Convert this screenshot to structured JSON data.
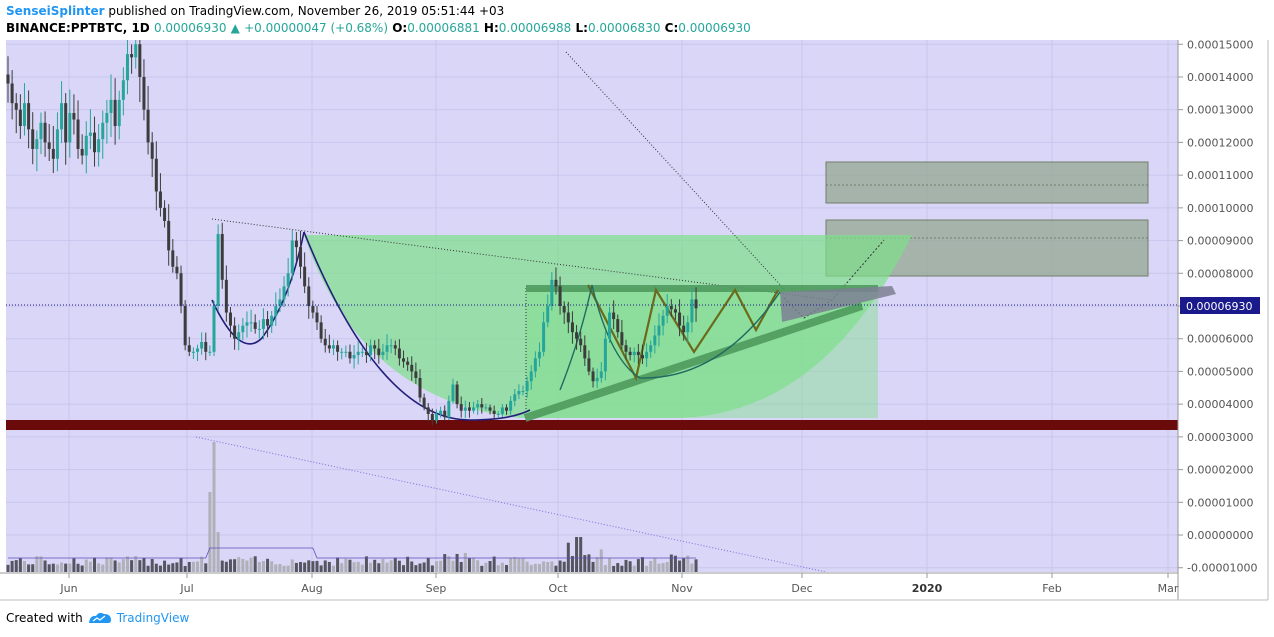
{
  "header": {
    "author": "SenseiSplinter",
    "published": "published on TradingView.com, November 26, 2019 05:51:44 +03",
    "symbol": "BINANCE:PPTBTC, 1D",
    "last": "0.00006930",
    "change_arrow": "▲",
    "change": "+0.00000047 (+0.68%)",
    "o_label": "O:",
    "o": "0.00006881",
    "h_label": "H:",
    "h": "0.00006988",
    "l_label": "L:",
    "l": "0.00006830",
    "c_label": "C:",
    "c": "0.00006930"
  },
  "footer": {
    "created_with": "Created with",
    "brand": "TradingView"
  },
  "colors": {
    "background": "#d9d6f7",
    "up": "#26a69a",
    "down": "#3c3c3c",
    "price_line": "#1a1a8c",
    "support": "#6b0a0a",
    "cup": "#7ee08a",
    "target": "#9aa88f"
  },
  "chart_data": {
    "type": "candlestick",
    "symbol": "BINANCE:PPTBTC",
    "interval": "1D",
    "current_price": "0.00006930",
    "y_ticks": [
      "0.00015000",
      "0.00014000",
      "0.00013000",
      "0.00012000",
      "0.00011000",
      "0.00010000",
      "0.00009000",
      "0.00008000",
      "0.00007000",
      "0.00006000",
      "0.00005000",
      "0.00004000",
      "0.00003000",
      "0.00002000",
      "0.00001000",
      "0.00000000",
      "-0.00001000"
    ],
    "x_ticks": [
      "Jun",
      "Jul",
      "Aug",
      "Sep",
      "Oct",
      "Nov",
      "Dec",
      "2020",
      "Feb",
      "Mar"
    ],
    "bold_x_ticks": [
      "2020"
    ],
    "ylim": [
      -1.13e-05,
      0.0001513
    ],
    "support_zone": [
      3.1e-05,
      3.42e-05
    ],
    "target_zones": [
      [
        7.9e-05,
        9.6e-05
      ],
      [
        0.000101,
        0.000114
      ]
    ],
    "close_series": [
      0.000138,
      0.000132,
      0.00013,
      0.000125,
      0.000132,
      0.000124,
      0.000118,
      0.000121,
      0.000126,
      0.00012,
      0.000118,
      0.000115,
      0.000124,
      0.000132,
      0.00012,
      0.000129,
      0.000127,
      0.000118,
      0.000116,
      0.000122,
      0.000123,
      0.000117,
      0.000121,
      0.000126,
      0.000129,
      0.000133,
      0.000125,
      0.000133,
      0.000139,
      0.000147,
      0.000146,
      0.00015,
      0.00014,
      0.00013,
      0.00012,
      0.000115,
      0.000105,
      0.0001,
      9.6e-05,
      8.7e-05,
      8.2e-05,
      8e-05,
      7e-05,
      5.8e-05,
      5.6e-05,
      5.6e-05,
      5.7e-05,
      5.9e-05,
      5.6e-05,
      5.6e-05,
      7e-05,
      9.2e-05,
      7.8e-05,
      6.8e-05,
      6.4e-05,
      6e-05,
      6.2e-05,
      6.4e-05,
      6.5e-05,
      6.5e-05,
      6.3e-05,
      6.3e-05,
      6.6e-05,
      6.4e-05,
      6.7e-05,
      7e-05,
      7.2e-05,
      7.6e-05,
      8e-05,
      9e-05,
      8.8e-05,
      8.2e-05,
      7.6e-05,
      7e-05,
      6.8e-05,
      6.5e-05,
      6e-05,
      5.8e-05,
      5.7e-05,
      5.8e-05,
      5.6e-05,
      5.6e-05,
      5.6e-05,
      5.4e-05,
      5.5e-05,
      5.6e-05,
      5.6e-05,
      5.5e-05,
      5.8e-05,
      5.7e-05,
      5.5e-05,
      5.6e-05,
      5.8e-05,
      5.8e-05,
      5.7e-05,
      5.4e-05,
      5.3e-05,
      5.2e-05,
      5e-05,
      4.8e-05,
      4.2e-05,
      3.9e-05,
      3.7e-05,
      3.5e-05,
      3.7e-05,
      3.8e-05,
      3.6e-05,
      4.1e-05,
      4.6e-05,
      4e-05,
      3.8e-05,
      3.9e-05,
      3.8e-05,
      3.9e-05,
      4e-05,
      3.9e-05,
      3.9e-05,
      3.8e-05,
      3.7e-05,
      3.7e-05,
      3.9e-05,
      3.8e-05,
      4.1e-05,
      4.3e-05,
      4.4e-05,
      4.4e-05,
      4.7e-05,
      5e-05,
      5.4e-05,
      5.6e-05,
      6.5e-05,
      7e-05,
      7.8e-05,
      7.6e-05,
      7e-05,
      6.8e-05,
      6.5e-05,
      6.2e-05,
      6e-05,
      5.8e-05,
      5.4e-05,
      5e-05,
      4.7e-05,
      4.8e-05,
      5e-05,
      6e-05,
      6.8e-05,
      6.6e-05,
      6.2e-05,
      5.8e-05,
      5.6e-05,
      5.5e-05,
      5.6e-05,
      5.5e-05,
      5.4e-05,
      5.6e-05,
      5.8e-05,
      6.1e-05,
      6.4e-05,
      6.7e-05,
      7e-05,
      6.9e-05,
      6.8e-05,
      6.4e-05,
      6.2e-05,
      6.5e-05,
      7.2e-05,
      6.93e-05
    ]
  }
}
